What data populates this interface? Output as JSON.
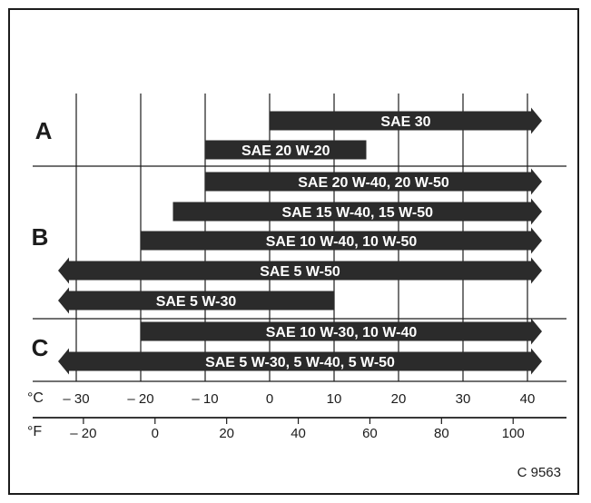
{
  "colors": {
    "ink": "#1c1c1c",
    "bar": "#2b2b2b",
    "paper": "#ffffff",
    "bar_text": "#ffffff"
  },
  "groups": [
    {
      "label": "A"
    },
    {
      "label": "B"
    },
    {
      "label": "C"
    }
  ],
  "chart_data": {
    "type": "bar",
    "orientation": "horizontal",
    "x_unit": "°C",
    "xlim": [
      -40,
      40
    ],
    "bars": [
      {
        "label": "SAE 30",
        "group": "A",
        "from": 0,
        "to": 40,
        "arrow_left": false,
        "arrow_right": true
      },
      {
        "label": "SAE 20 W-20",
        "group": "A",
        "from": -10,
        "to": 15,
        "arrow_left": false,
        "arrow_right": false
      },
      {
        "label": "SAE 20 W-40, 20 W-50",
        "group": "B",
        "from": -10,
        "to": 40,
        "arrow_left": false,
        "arrow_right": true
      },
      {
        "label": "SAE 15 W-40, 15 W-50",
        "group": "B",
        "from": -15,
        "to": 40,
        "arrow_left": false,
        "arrow_right": true
      },
      {
        "label": "SAE 10 W-40, 10 W-50",
        "group": "B",
        "from": -20,
        "to": 40,
        "arrow_left": false,
        "arrow_right": true
      },
      {
        "label": "SAE 5 W-50",
        "group": "B",
        "from": -40,
        "to": 40,
        "arrow_left": true,
        "arrow_right": true
      },
      {
        "label": "SAE 5 W-30",
        "group": "B",
        "from": -40,
        "to": 10,
        "arrow_left": true,
        "arrow_right": false
      },
      {
        "label": "SAE 10 W-30, 10 W-40",
        "group": "C",
        "from": -20,
        "to": 40,
        "arrow_left": false,
        "arrow_right": true
      },
      {
        "label": "SAE 5 W-30, 5 W-40, 5 W-50",
        "group": "C",
        "from": -40,
        "to": 40,
        "arrow_left": true,
        "arrow_right": true
      }
    ],
    "celsius_axis": {
      "unit_label": "°C",
      "ticks": [
        {
          "value": -30,
          "text": "– 30"
        },
        {
          "value": -20,
          "text": "– 20"
        },
        {
          "value": -10,
          "text": "– 10"
        },
        {
          "value": 0,
          "text": "0"
        },
        {
          "value": 10,
          "text": "10"
        },
        {
          "value": 20,
          "text": "20"
        },
        {
          "value": 30,
          "text": "30"
        },
        {
          "value": 40,
          "text": "40"
        }
      ]
    },
    "fahrenheit_axis": {
      "unit_label": "°F",
      "ticks": [
        {
          "value": -20,
          "text": "– 20"
        },
        {
          "value": 0,
          "text": "0"
        },
        {
          "value": 20,
          "text": "20"
        },
        {
          "value": 40,
          "text": "40"
        },
        {
          "value": 60,
          "text": "60"
        },
        {
          "value": 80,
          "text": "80"
        },
        {
          "value": 100,
          "text": "100"
        }
      ]
    },
    "grid": true
  },
  "figure_code": "C 9563"
}
